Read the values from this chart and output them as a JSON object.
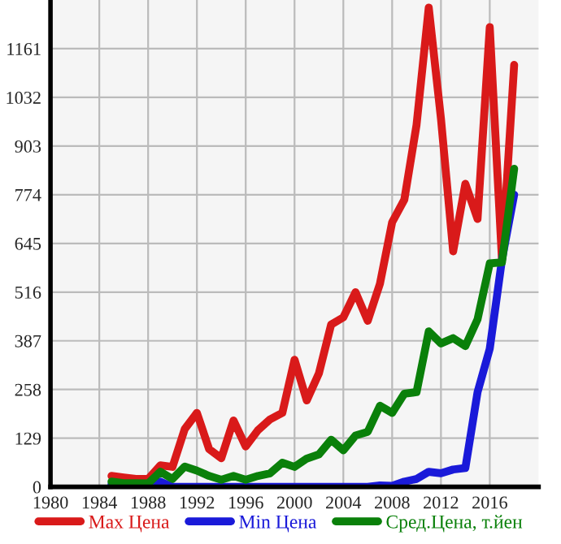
{
  "chart_data": {
    "type": "line",
    "x": [
      1985,
      1986,
      1987,
      1988,
      1989,
      1990,
      1991,
      1992,
      1993,
      1994,
      1995,
      1996,
      1997,
      1998,
      1999,
      2000,
      2001,
      2002,
      2003,
      2004,
      2005,
      2006,
      2007,
      2008,
      2009,
      2010,
      2011,
      2012,
      2013,
      2014,
      2015,
      2016,
      2017,
      2018
    ],
    "series": [
      {
        "name": "Max Цена",
        "color": "#d91a1a",
        "values": [
          29,
          25,
          21,
          21,
          57,
          53,
          153,
          196,
          100,
          76,
          176,
          107,
          150,
          179,
          196,
          337,
          229,
          301,
          430,
          449,
          516,
          440,
          538,
          701,
          761,
          959,
          1270,
          976,
          624,
          803,
          710,
          1218,
          602,
          1118
        ]
      },
      {
        "name": "Min Цена",
        "color": "#1a1ad9",
        "values": [
          7,
          4,
          4,
          4,
          14,
          0,
          0,
          0,
          0,
          0,
          0,
          0,
          0,
          0,
          0,
          0,
          0,
          0,
          0,
          0,
          0,
          0,
          4,
          3,
          14,
          21,
          40,
          36,
          46,
          50,
          251,
          366,
          602,
          774
        ]
      },
      {
        "name": "Сред.Цена, т.йен",
        "color": "#0a800a",
        "values": [
          14,
          10,
          10,
          9,
          40,
          21,
          54,
          43,
          29,
          19,
          29,
          19,
          29,
          36,
          64,
          53,
          75,
          86,
          125,
          97,
          136,
          146,
          215,
          196,
          247,
          251,
          412,
          380,
          394,
          373,
          444,
          592,
          595,
          843
        ]
      }
    ],
    "xlim": [
      1980,
      2020
    ],
    "xticks": [
      1980,
      1984,
      1988,
      1992,
      1996,
      2000,
      2004,
      2008,
      2012,
      2016
    ],
    "ylim": [
      0,
      1290
    ],
    "yticks": [
      0,
      129,
      258,
      387,
      516,
      645,
      774,
      903,
      1032,
      1161
    ],
    "grid": true,
    "legend": "bottom"
  }
}
